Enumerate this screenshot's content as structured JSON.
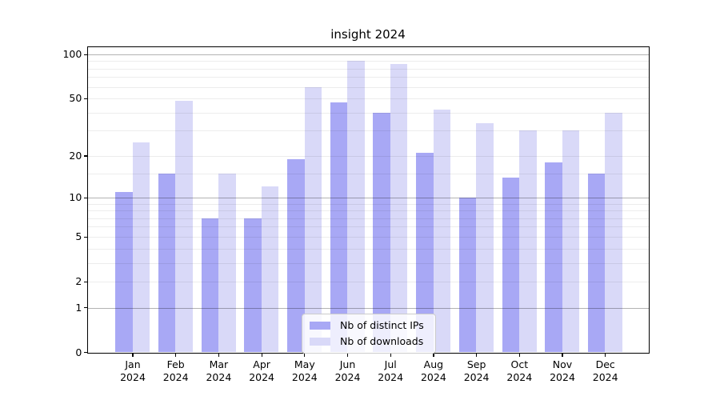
{
  "title": "insight 2024",
  "legend": {
    "items": [
      {
        "label": "Nb of distinct IPs",
        "color": "#a8a8f5"
      },
      {
        "label": "Nb of downloads",
        "color": "#d9d9f8"
      }
    ],
    "position": "lower center"
  },
  "y_axis": {
    "tick_labels": [
      "100",
      "50",
      "20",
      "10",
      "5",
      "2",
      "1",
      "0"
    ]
  },
  "x_axis": {
    "months": [
      "Jan",
      "Feb",
      "Mar",
      "Apr",
      "May",
      "Jun",
      "Jul",
      "Aug",
      "Sep",
      "Oct",
      "Nov",
      "Dec"
    ],
    "year": "2024"
  },
  "chart_data": {
    "type": "bar",
    "title": "insight 2024",
    "categories": [
      "Jan 2024",
      "Feb 2024",
      "Mar 2024",
      "Apr 2024",
      "May 2024",
      "Jun 2024",
      "Jul 2024",
      "Aug 2024",
      "Sep 2024",
      "Oct 2024",
      "Nov 2024",
      "Dec 2024"
    ],
    "series": [
      {
        "name": "Nb of distinct IPs",
        "color": "#a8a8f5",
        "values": [
          11,
          15,
          7,
          7,
          19,
          47,
          40,
          21,
          10,
          14,
          18,
          15
        ]
      },
      {
        "name": "Nb of downloads",
        "color": "#d9d9f8",
        "values": [
          25,
          48,
          15,
          12,
          60,
          90,
          86,
          42,
          34,
          30,
          30,
          40
        ]
      }
    ],
    "xlabel": "",
    "ylabel": "",
    "y_scale": "log10(1+y)",
    "y_ticks": [
      0,
      1,
      2,
      5,
      10,
      20,
      50,
      100
    ],
    "ylim": [
      0,
      116
    ],
    "grid": true,
    "major_gridline_values": [
      1,
      10,
      100
    ],
    "minor_gridline_values": [
      2,
      3,
      4,
      5,
      6,
      7,
      8,
      9,
      15,
      20,
      30,
      40,
      50,
      60,
      70,
      80,
      90
    ],
    "legend_position": "lower center"
  },
  "colors": {
    "background": "#ffffff",
    "spine": "#000000",
    "grid_major": "#b3b3b3",
    "grid_minor": "#ececec",
    "text": "#000000",
    "legend_border": "#cccccc"
  }
}
